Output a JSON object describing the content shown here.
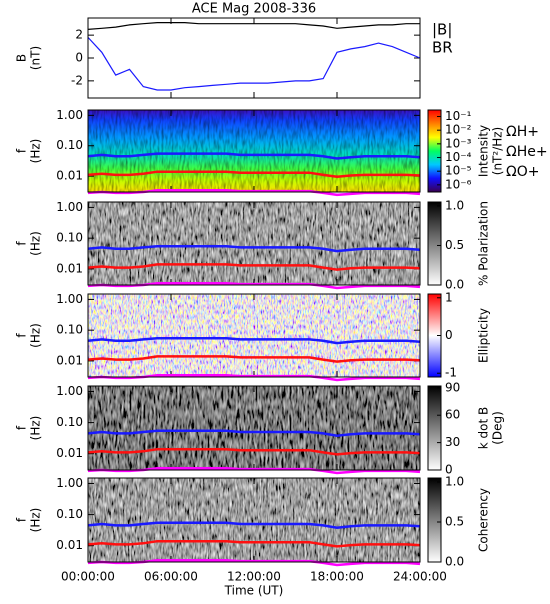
{
  "chart_data": [
    {
      "type": "line",
      "title": "ACE Mag 2008-336",
      "ylabel": [
        "B",
        "(nT)"
      ],
      "x": [
        0,
        1,
        2,
        3,
        4,
        5,
        6,
        7,
        8,
        9,
        10,
        11,
        12,
        13,
        14,
        15,
        16,
        17,
        18,
        19,
        20,
        21,
        22,
        23,
        24
      ],
      "xlim": [
        0,
        24
      ],
      "xticks": [
        {
          "value": 0,
          "label": "00:00:00"
        },
        {
          "value": 6,
          "label": "06:00:00"
        },
        {
          "value": 12,
          "label": "12:00:00"
        },
        {
          "value": 18,
          "label": "18:00:00"
        },
        {
          "value": 24,
          "label": "24:00:00"
        }
      ],
      "xlabel": "Time (UT)",
      "ylim": [
        -3.5,
        3.5
      ],
      "yticks": [
        -2,
        0,
        2
      ],
      "series": [
        {
          "name": "|B|",
          "color": "#000000",
          "values": [
            2.5,
            2.6,
            2.7,
            2.9,
            3.0,
            3.1,
            3.1,
            3.1,
            3.0,
            3.0,
            3.0,
            3.0,
            3.0,
            3.0,
            3.0,
            3.0,
            2.9,
            2.8,
            2.6,
            2.7,
            2.8,
            2.9,
            2.9,
            3.0,
            3.0
          ]
        },
        {
          "name": "BR",
          "color": "#1a1aff",
          "values": [
            1.8,
            0.5,
            -1.5,
            -1.0,
            -2.5,
            -2.8,
            -2.8,
            -2.6,
            -2.5,
            -2.4,
            -2.3,
            -2.2,
            -2.2,
            -2.2,
            -2.1,
            -2.0,
            -2.0,
            -1.8,
            0.5,
            0.8,
            1.0,
            1.3,
            1.0,
            0.5,
            0.0
          ]
        }
      ]
    },
    {
      "type": "spectrogram",
      "ylabel": [
        "f",
        "(Hz)"
      ],
      "log": true,
      "ylim": [
        0.003,
        1.5
      ],
      "yticks": [
        {
          "value": 0.01,
          "label": "0.01"
        },
        {
          "value": 0.1,
          "label": "0.10"
        },
        {
          "value": 1,
          "label": "1.00"
        }
      ],
      "colorbar": {
        "label": [
          "Intensity",
          "(nT²/Hz)"
        ],
        "log": true,
        "lim": [
          3e-07,
          0.3
        ],
        "colors": [
          "#3a0050",
          "#1010ff",
          "#00c8ff",
          "#00ff60",
          "#ffff00",
          "#ff8000",
          "#ff0000"
        ],
        "ticks": [
          {
            "value": 0.1,
            "label": "10⁻¹"
          },
          {
            "value": 0.01,
            "label": "10⁻²"
          },
          {
            "value": 0.001,
            "label": "10⁻³"
          },
          {
            "value": 0.0001,
            "label": "10⁻⁴"
          },
          {
            "value": 1e-05,
            "label": "10⁻⁵"
          },
          {
            "value": 1e-06,
            "label": "10⁻⁶"
          }
        ]
      },
      "series": [
        {
          "name": "ΩH+",
          "color": "#1a1aff",
          "values": [
            0.045,
            0.05,
            0.045,
            0.045,
            0.05,
            0.055,
            0.055,
            0.055,
            0.055,
            0.055,
            0.055,
            0.05,
            0.05,
            0.05,
            0.05,
            0.05,
            0.05,
            0.045,
            0.038,
            0.042,
            0.045,
            0.045,
            0.045,
            0.045,
            0.042
          ]
        },
        {
          "name": "ΩHe+",
          "color": "#ff1010",
          "values": [
            0.011,
            0.012,
            0.011,
            0.011,
            0.012,
            0.014,
            0.014,
            0.014,
            0.014,
            0.014,
            0.014,
            0.013,
            0.013,
            0.013,
            0.013,
            0.013,
            0.013,
            0.011,
            0.0095,
            0.0105,
            0.011,
            0.011,
            0.011,
            0.011,
            0.0105
          ]
        },
        {
          "name": "ΩO+",
          "color": "#ff00ff",
          "values": [
            0.0028,
            0.003,
            0.0028,
            0.0028,
            0.003,
            0.0034,
            0.0034,
            0.0034,
            0.0034,
            0.0034,
            0.0034,
            0.0032,
            0.0032,
            0.0032,
            0.0032,
            0.0032,
            0.0032,
            0.0028,
            0.0024,
            0.0026,
            0.0028,
            0.0028,
            0.0028,
            0.0028,
            0.0026
          ]
        }
      ]
    },
    {
      "type": "spectrogram",
      "ylabel": [
        "f",
        "(Hz)"
      ],
      "log": true,
      "ylim": [
        0.003,
        1.5
      ],
      "yticks": [
        {
          "value": 0.01,
          "label": "0.01"
        },
        {
          "value": 0.1,
          "label": "0.10"
        },
        {
          "value": 1,
          "label": "1.00"
        }
      ],
      "colorbar": {
        "label": [
          "% Polarization"
        ],
        "log": false,
        "lim": [
          0,
          1.05
        ],
        "colors": [
          "#ffffff",
          "#000000"
        ],
        "ticks": [
          {
            "value": 0,
            "label": "0.0"
          },
          {
            "value": 0.5,
            "label": "0.5"
          },
          {
            "value": 1,
            "label": "1.0"
          }
        ]
      }
    },
    {
      "type": "spectrogram",
      "ylabel": [
        "f",
        "(Hz)"
      ],
      "log": true,
      "ylim": [
        0.003,
        1.5
      ],
      "yticks": [
        {
          "value": 0.01,
          "label": "0.01"
        },
        {
          "value": 0.1,
          "label": "0.10"
        },
        {
          "value": 1,
          "label": "1.00"
        }
      ],
      "colorbar": {
        "label": [
          "Ellipticity"
        ],
        "log": false,
        "lim": [
          -1.1,
          1.1
        ],
        "colors": [
          "#0000ff",
          "#ffffff",
          "#ff0000"
        ],
        "ticks": [
          -1,
          0,
          1
        ]
      }
    },
    {
      "type": "spectrogram",
      "ylabel": [
        "f",
        "(Hz)"
      ],
      "log": true,
      "ylim": [
        0.003,
        1.5
      ],
      "yticks": [
        {
          "value": 0.01,
          "label": "0.01"
        },
        {
          "value": 0.1,
          "label": "0.10"
        },
        {
          "value": 1,
          "label": "1.00"
        }
      ],
      "colorbar": {
        "label": [
          "k dot B",
          "(Deg)"
        ],
        "log": false,
        "lim": [
          0,
          92
        ],
        "colors": [
          "#ffffff",
          "#000000"
        ],
        "ticks": [
          0,
          30,
          60,
          90
        ]
      }
    },
    {
      "type": "spectrogram",
      "ylabel": [
        "f",
        "(Hz)"
      ],
      "log": true,
      "ylim": [
        0.003,
        1.5
      ],
      "yticks": [
        {
          "value": 0.01,
          "label": "0.01"
        },
        {
          "value": 0.1,
          "label": "0.10"
        },
        {
          "value": 1,
          "label": "1.00"
        }
      ],
      "colorbar": {
        "label": [
          "Coherency"
        ],
        "log": false,
        "lim": [
          0,
          1.05
        ],
        "colors": [
          "#ffffff",
          "#000000"
        ],
        "ticks": [
          {
            "value": 0,
            "label": "0.0"
          },
          {
            "value": 0.5,
            "label": "0.5"
          },
          {
            "value": 1,
            "label": "1.0"
          }
        ]
      }
    }
  ]
}
